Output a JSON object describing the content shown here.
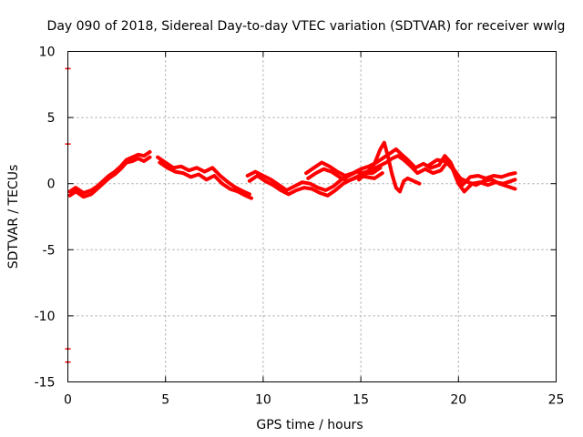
{
  "chart_data": {
    "type": "line",
    "title": "Day 090 of 2018, Sidereal Day-to-day VTEC variation (SDTVAR) for receiver wwlg",
    "xlabel": "GPS time / hours",
    "ylabel": "SDTVAR / TECUs",
    "xlim": [
      0,
      25
    ],
    "ylim": [
      -15,
      10
    ],
    "xticks": [
      0,
      5,
      10,
      15,
      20,
      25
    ],
    "yticks": [
      -15,
      -10,
      -5,
      0,
      5,
      10
    ],
    "xtick_labels": [
      "0",
      "5",
      "10",
      "15",
      "20",
      "25"
    ],
    "ytick_labels": [
      "-15",
      "-10",
      "-5",
      "0",
      "5",
      "10"
    ],
    "grid": true,
    "color": "#ff0000",
    "y_axis_markers": [
      8.7,
      3.0,
      -12.5,
      -13.5
    ],
    "series": [
      {
        "name": "SDTVAR",
        "segments": [
          [
            [
              0.1,
              -0.6
            ],
            [
              0.4,
              -0.3
            ],
            [
              0.8,
              -0.7
            ],
            [
              1.2,
              -0.5
            ],
            [
              1.5,
              -0.2
            ],
            [
              1.8,
              0.2
            ],
            [
              2.1,
              0.6
            ],
            [
              2.4,
              0.9
            ],
            [
              2.7,
              1.3
            ],
            [
              3.0,
              1.8
            ],
            [
              3.3,
              2.0
            ],
            [
              3.6,
              2.2
            ],
            [
              3.9,
              2.1
            ],
            [
              4.2,
              2.4
            ]
          ],
          [
            [
              0.1,
              -0.9
            ],
            [
              0.4,
              -0.6
            ],
            [
              0.8,
              -1.0
            ],
            [
              1.2,
              -0.8
            ],
            [
              1.5,
              -0.4
            ],
            [
              1.8,
              0.0
            ],
            [
              2.1,
              0.4
            ],
            [
              2.4,
              0.7
            ],
            [
              2.7,
              1.1
            ],
            [
              3.0,
              1.6
            ],
            [
              3.3,
              1.7
            ],
            [
              3.6,
              1.9
            ],
            [
              3.9,
              1.7
            ],
            [
              4.2,
              2.0
            ]
          ],
          [
            [
              4.6,
              2.0
            ],
            [
              5.0,
              1.6
            ],
            [
              5.4,
              1.2
            ],
            [
              5.8,
              1.3
            ],
            [
              6.2,
              1.0
            ],
            [
              6.6,
              1.2
            ],
            [
              7.0,
              0.9
            ],
            [
              7.4,
              1.2
            ],
            [
              7.8,
              0.6
            ],
            [
              8.2,
              0.1
            ],
            [
              8.6,
              -0.3
            ],
            [
              9.0,
              -0.6
            ],
            [
              9.3,
              -0.8
            ]
          ],
          [
            [
              4.7,
              1.6
            ],
            [
              5.1,
              1.2
            ],
            [
              5.5,
              0.9
            ],
            [
              5.9,
              0.8
            ],
            [
              6.3,
              0.5
            ],
            [
              6.7,
              0.7
            ],
            [
              7.1,
              0.3
            ],
            [
              7.5,
              0.6
            ],
            [
              7.9,
              0.0
            ],
            [
              8.3,
              -0.4
            ],
            [
              8.7,
              -0.6
            ],
            [
              9.1,
              -0.9
            ],
            [
              9.4,
              -1.1
            ]
          ],
          [
            [
              9.2,
              0.6
            ],
            [
              9.6,
              0.9
            ],
            [
              10.0,
              0.6
            ],
            [
              10.4,
              0.3
            ],
            [
              10.8,
              -0.1
            ],
            [
              11.2,
              -0.5
            ],
            [
              11.6,
              -0.2
            ],
            [
              12.0,
              0.1
            ],
            [
              12.4,
              0.0
            ],
            [
              12.8,
              -0.3
            ],
            [
              13.2,
              -0.5
            ],
            [
              13.6,
              -0.2
            ],
            [
              14.0,
              0.3
            ],
            [
              14.4,
              0.6
            ],
            [
              14.8,
              0.9
            ],
            [
              15.2,
              0.8
            ],
            [
              15.6,
              0.8
            ],
            [
              16.0,
              1.2
            ]
          ],
          [
            [
              9.3,
              0.2
            ],
            [
              9.7,
              0.6
            ],
            [
              10.1,
              0.2
            ],
            [
              10.5,
              -0.1
            ],
            [
              10.9,
              -0.5
            ],
            [
              11.3,
              -0.8
            ],
            [
              11.7,
              -0.5
            ],
            [
              12.1,
              -0.3
            ],
            [
              12.5,
              -0.4
            ],
            [
              12.9,
              -0.7
            ],
            [
              13.3,
              -0.9
            ],
            [
              13.7,
              -0.5
            ],
            [
              14.1,
              0.0
            ],
            [
              14.5,
              0.3
            ],
            [
              14.9,
              0.6
            ],
            [
              15.3,
              0.5
            ],
            [
              15.7,
              0.4
            ],
            [
              16.1,
              0.8
            ]
          ],
          [
            [
              12.2,
              0.8
            ],
            [
              12.6,
              1.2
            ],
            [
              13.0,
              1.6
            ],
            [
              13.4,
              1.3
            ],
            [
              13.8,
              0.9
            ],
            [
              14.2,
              0.6
            ],
            [
              14.6,
              0.8
            ],
            [
              15.0,
              1.1
            ],
            [
              15.4,
              1.3
            ],
            [
              15.8,
              1.6
            ],
            [
              16.2,
              2.0
            ],
            [
              16.5,
              2.3
            ],
            [
              16.8,
              2.6
            ],
            [
              17.1,
              2.2
            ],
            [
              17.4,
              1.8
            ],
            [
              17.8,
              1.2
            ],
            [
              18.2,
              1.5
            ],
            [
              18.6,
              1.2
            ],
            [
              19.0,
              1.4
            ],
            [
              19.3,
              2.1
            ],
            [
              19.6,
              1.6
            ],
            [
              19.9,
              0.6
            ],
            [
              20.2,
              -0.1
            ],
            [
              20.6,
              0.5
            ],
            [
              21.0,
              0.6
            ],
            [
              21.4,
              0.4
            ],
            [
              21.8,
              0.6
            ],
            [
              22.2,
              0.5
            ],
            [
              22.6,
              0.7
            ],
            [
              22.9,
              0.8
            ]
          ],
          [
            [
              12.3,
              0.4
            ],
            [
              12.7,
              0.8
            ],
            [
              13.1,
              1.1
            ],
            [
              13.5,
              0.9
            ],
            [
              13.9,
              0.5
            ],
            [
              14.3,
              0.2
            ],
            [
              14.7,
              0.4
            ],
            [
              15.1,
              0.8
            ],
            [
              15.5,
              1.0
            ],
            [
              15.9,
              1.3
            ],
            [
              16.3,
              1.6
            ],
            [
              16.6,
              1.9
            ],
            [
              16.9,
              2.1
            ],
            [
              17.2,
              1.8
            ],
            [
              17.5,
              1.4
            ],
            [
              17.9,
              0.8
            ],
            [
              18.3,
              1.1
            ],
            [
              18.7,
              0.8
            ],
            [
              19.1,
              1.0
            ],
            [
              19.4,
              1.6
            ],
            [
              19.7,
              1.1
            ],
            [
              20.0,
              0.0
            ],
            [
              20.3,
              -0.6
            ],
            [
              20.7,
              0.0
            ],
            [
              21.1,
              0.1
            ],
            [
              21.5,
              -0.1
            ],
            [
              21.9,
              0.1
            ],
            [
              22.3,
              0.0
            ],
            [
              22.7,
              0.2
            ],
            [
              22.9,
              0.3
            ]
          ],
          [
            [
              14.9,
              0.3
            ],
            [
              15.3,
              0.8
            ],
            [
              15.7,
              1.5
            ],
            [
              16.0,
              2.6
            ],
            [
              16.2,
              3.1
            ],
            [
              16.4,
              2.0
            ],
            [
              16.6,
              0.7
            ],
            [
              16.8,
              -0.3
            ],
            [
              17.0,
              -0.6
            ],
            [
              17.2,
              0.2
            ],
            [
              17.4,
              0.4
            ],
            [
              17.7,
              0.2
            ],
            [
              18.0,
              0.0
            ]
          ],
          [
            [
              18.5,
              1.4
            ],
            [
              18.9,
              1.8
            ],
            [
              19.3,
              1.7
            ],
            [
              19.7,
              1.2
            ],
            [
              20.1,
              0.4
            ],
            [
              20.5,
              0.1
            ],
            [
              20.9,
              -0.1
            ],
            [
              21.3,
              0.2
            ],
            [
              21.7,
              0.3
            ],
            [
              22.1,
              0.0
            ],
            [
              22.5,
              -0.2
            ],
            [
              22.9,
              -0.4
            ]
          ]
        ]
      }
    ]
  }
}
